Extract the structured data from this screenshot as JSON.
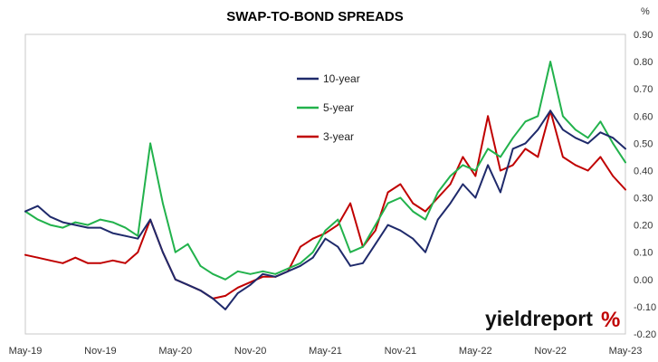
{
  "chart_data": {
    "type": "line",
    "title": "SWAP-TO-BOND SPREADS",
    "xlabel": "",
    "ylabel": "%",
    "ylim": [
      -0.2,
      0.9
    ],
    "yticks": [
      "-0.20",
      "-0.10",
      "0.00",
      "0.10",
      "0.20",
      "0.30",
      "0.40",
      "0.50",
      "0.60",
      "0.70",
      "0.80",
      "0.90"
    ],
    "x_ticks": [
      "May-19",
      "Nov-19",
      "May-20",
      "Nov-20",
      "May-21",
      "Nov-21",
      "May-22",
      "Nov-22",
      "May-23"
    ],
    "legend_position": "center-left",
    "grid": false,
    "series": [
      {
        "name": "10-year",
        "color": "#1f2a6b",
        "x": [
          "May-19",
          "Jun-19",
          "Jul-19",
          "Aug-19",
          "Sep-19",
          "Oct-19",
          "Nov-19",
          "Dec-19",
          "Jan-20",
          "Feb-20",
          "Mar-20",
          "Apr-20",
          "May-20",
          "Jun-20",
          "Jul-20",
          "Aug-20",
          "Sep-20",
          "Oct-20",
          "Nov-20",
          "Dec-20",
          "Jan-21",
          "Feb-21",
          "Mar-21",
          "Apr-21",
          "May-21",
          "Jun-21",
          "Jul-21",
          "Aug-21",
          "Sep-21",
          "Oct-21",
          "Nov-21",
          "Dec-21",
          "Jan-22",
          "Feb-22",
          "Mar-22",
          "Apr-22",
          "May-22",
          "Jun-22",
          "Jul-22",
          "Aug-22",
          "Sep-22",
          "Oct-22",
          "Nov-22",
          "Dec-22",
          "Jan-23",
          "Feb-23",
          "Mar-23",
          "Apr-23",
          "May-23"
        ],
        "values": [
          0.25,
          0.27,
          0.23,
          0.21,
          0.2,
          0.19,
          0.19,
          0.17,
          0.16,
          0.15,
          0.22,
          0.1,
          0.0,
          -0.02,
          -0.04,
          -0.07,
          -0.11,
          -0.05,
          -0.02,
          0.02,
          0.01,
          0.03,
          0.05,
          0.08,
          0.15,
          0.12,
          0.05,
          0.06,
          0.13,
          0.2,
          0.18,
          0.15,
          0.1,
          0.22,
          0.28,
          0.35,
          0.3,
          0.42,
          0.32,
          0.48,
          0.5,
          0.55,
          0.62,
          0.55,
          0.52,
          0.5,
          0.54,
          0.52,
          0.48
        ]
      },
      {
        "name": "5-year",
        "color": "#22b24c",
        "x": [
          "May-19",
          "Jun-19",
          "Jul-19",
          "Aug-19",
          "Sep-19",
          "Oct-19",
          "Nov-19",
          "Dec-19",
          "Jan-20",
          "Feb-20",
          "Mar-20",
          "Apr-20",
          "May-20",
          "Jun-20",
          "Jul-20",
          "Aug-20",
          "Sep-20",
          "Oct-20",
          "Nov-20",
          "Dec-20",
          "Jan-21",
          "Feb-21",
          "Mar-21",
          "Apr-21",
          "May-21",
          "Jun-21",
          "Jul-21",
          "Aug-21",
          "Sep-21",
          "Oct-21",
          "Nov-21",
          "Dec-21",
          "Jan-22",
          "Feb-22",
          "Mar-22",
          "Apr-22",
          "May-22",
          "Jun-22",
          "Jul-22",
          "Aug-22",
          "Sep-22",
          "Oct-22",
          "Nov-22",
          "Dec-22",
          "Jan-23",
          "Feb-23",
          "Mar-23",
          "Apr-23",
          "May-23"
        ],
        "values": [
          0.25,
          0.22,
          0.2,
          0.19,
          0.21,
          0.2,
          0.22,
          0.21,
          0.19,
          0.16,
          0.5,
          0.28,
          0.1,
          0.13,
          0.05,
          0.02,
          0.0,
          0.03,
          0.02,
          0.03,
          0.02,
          0.04,
          0.06,
          0.1,
          0.18,
          0.22,
          0.1,
          0.12,
          0.2,
          0.28,
          0.3,
          0.25,
          0.22,
          0.32,
          0.38,
          0.42,
          0.4,
          0.48,
          0.45,
          0.52,
          0.58,
          0.6,
          0.8,
          0.6,
          0.55,
          0.52,
          0.58,
          0.5,
          0.43
        ]
      },
      {
        "name": "3-year",
        "color": "#c00000",
        "x": [
          "May-19",
          "Jun-19",
          "Jul-19",
          "Aug-19",
          "Sep-19",
          "Oct-19",
          "Nov-19",
          "Dec-19",
          "Jan-20",
          "Feb-20",
          "Mar-20",
          "Apr-20",
          "May-20",
          "Jun-20",
          "Jul-20",
          "Aug-20",
          "Sep-20",
          "Oct-20",
          "Nov-20",
          "Dec-20",
          "Jan-21",
          "Feb-21",
          "Mar-21",
          "Apr-21",
          "May-21",
          "Jun-21",
          "Jul-21",
          "Aug-21",
          "Sep-21",
          "Oct-21",
          "Nov-21",
          "Dec-21",
          "Jan-22",
          "Feb-22",
          "Mar-22",
          "Apr-22",
          "May-22",
          "Jun-22",
          "Jul-22",
          "Aug-22",
          "Sep-22",
          "Oct-22",
          "Nov-22",
          "Dec-22",
          "Jan-23",
          "Feb-23",
          "Mar-23",
          "Apr-23",
          "May-23"
        ],
        "values": [
          0.09,
          0.08,
          0.07,
          0.06,
          0.08,
          0.06,
          0.06,
          0.07,
          0.06,
          0.1,
          0.22,
          0.1,
          0.0,
          -0.02,
          -0.04,
          -0.07,
          -0.06,
          -0.03,
          -0.01,
          0.01,
          0.01,
          0.03,
          0.12,
          0.15,
          0.17,
          0.2,
          0.28,
          0.12,
          0.18,
          0.32,
          0.35,
          0.28,
          0.25,
          0.3,
          0.35,
          0.45,
          0.38,
          0.6,
          0.4,
          0.42,
          0.48,
          0.45,
          0.62,
          0.45,
          0.42,
          0.4,
          0.45,
          0.38,
          0.33
        ]
      }
    ]
  },
  "brand": {
    "wordmark": "yieldreport",
    "symbol": "%"
  }
}
